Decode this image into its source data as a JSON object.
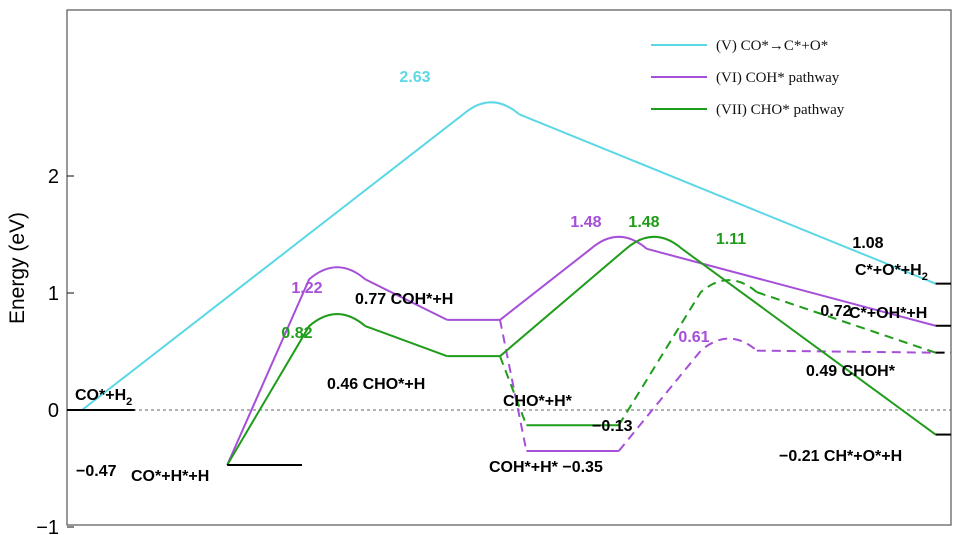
{
  "chart_data": {
    "type": "line",
    "title": "",
    "xlabel": "",
    "ylabel": "Energy (eV)",
    "ylim": [
      -1.15,
      3.5
    ],
    "yticks": [
      -1,
      0,
      1,
      2
    ],
    "ytick_labels": [
      "−1",
      "0",
      "1",
      "2"
    ],
    "colors": {
      "V": "#5cd7e6",
      "VI": "#a64fd9",
      "VII": "#1f9c1a",
      "shared": "#000000"
    },
    "legend": {
      "position": "top-right",
      "entries": [
        {
          "key": "V",
          "label": "(V) CO*→C*+O*"
        },
        {
          "key": "VI",
          "label": "(VI) COH* pathway"
        },
        {
          "key": "VII",
          "label": "(VII) CHO* pathway"
        }
      ]
    },
    "series": [
      {
        "key": "V",
        "name": "(V) CO*→C*+O*",
        "states": [
          {
            "x": 0,
            "energy": 0
          },
          {
            "x": 4.65,
            "energy": 2.63,
            "ts": true
          },
          {
            "x": 9.7,
            "energy": 1.08
          }
        ]
      },
      {
        "key": "VI",
        "name": "(VI) COH* pathway",
        "states": [
          {
            "x": 1.65,
            "energy": -0.47
          },
          {
            "x": 2.9,
            "energy": 1.22,
            "ts": true
          },
          {
            "x": 4.15,
            "energy": 0.77
          },
          {
            "x": 4.75,
            "energy": 0.77
          },
          {
            "x": 5.05,
            "energy": -0.35,
            "dashed_in": true
          },
          {
            "x": 6.1,
            "energy": -0.35
          },
          {
            "x": 7.35,
            "energy": 0.61,
            "ts": true,
            "dashed_in": true
          },
          {
            "x": 9.7,
            "energy": 0.49,
            "dashed_in": true
          },
          {
            "x": 6.1,
            "energy": 1.48,
            "ts": true,
            "branch_from": 3
          },
          {
            "x": 9.7,
            "energy": 0.72
          }
        ]
      },
      {
        "key": "VII",
        "name": "(VII) CHO* pathway",
        "states": [
          {
            "x": 1.65,
            "energy": -0.47
          },
          {
            "x": 2.9,
            "energy": 0.82,
            "ts": true
          },
          {
            "x": 4.15,
            "energy": 0.46
          },
          {
            "x": 4.75,
            "energy": 0.46
          },
          {
            "x": 5.05,
            "energy": -0.13,
            "dashed_in": true
          },
          {
            "x": 6.1,
            "energy": -0.13
          },
          {
            "x": 7.35,
            "energy": 1.11,
            "ts": true,
            "dashed_in": true
          },
          {
            "x": 9.7,
            "energy": 0.49,
            "dashed_in": true
          },
          {
            "x": 6.5,
            "energy": 1.48,
            "ts": true,
            "branch_from": 3
          },
          {
            "x": 9.7,
            "energy": -0.21
          }
        ]
      }
    ],
    "value_labels": [
      {
        "text": "2.63",
        "key": "V"
      },
      {
        "text": "1.22",
        "key": "VI"
      },
      {
        "text": "0.82",
        "key": "VII"
      },
      {
        "text": "1.48",
        "key": "VI"
      },
      {
        "text": "1.48",
        "key": "VII"
      },
      {
        "text": "1.11",
        "key": "VII"
      },
      {
        "text": "0.61",
        "key": "VI"
      },
      {
        "text": "0.72",
        "key": "shared"
      },
      {
        "text": "1.08",
        "key": "shared"
      }
    ],
    "state_labels": [
      {
        "main": "CO*+H",
        "sub": "2"
      },
      {
        "main": "−0.47",
        "sub": ""
      },
      {
        "main": "CO*+H*+H",
        "sub": ""
      },
      {
        "main": "0.77 COH*+H",
        "sub": ""
      },
      {
        "main": "0.46 CHO*+H",
        "sub": ""
      },
      {
        "main": "CHO*+H*",
        "sub": ""
      },
      {
        "main": "−0.13",
        "sub": ""
      },
      {
        "main": "COH*+H* −0.35",
        "sub": ""
      },
      {
        "main": "C*+O*+H",
        "sub": "2"
      },
      {
        "main": "C*+OH*+H",
        "sub": ""
      },
      {
        "main": "0.49  CHOH*",
        "sub": ""
      },
      {
        "main": "−0.21  CH*+O*+H",
        "sub": ""
      }
    ]
  }
}
